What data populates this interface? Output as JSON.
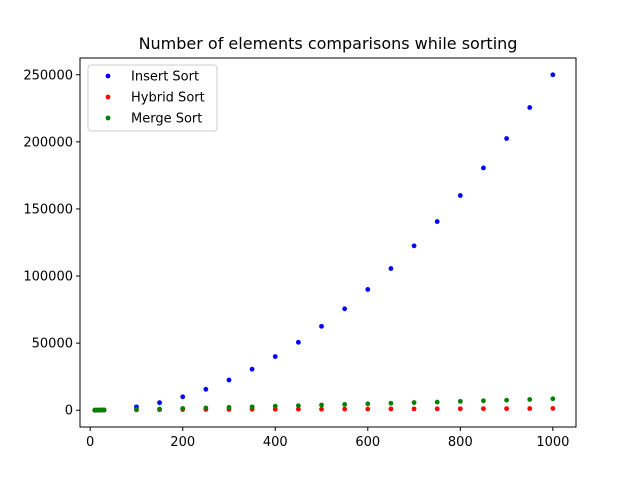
{
  "chart_data": {
    "type": "scatter",
    "title": "Number of elements comparisons while sorting",
    "xlabel": "",
    "ylabel": "",
    "xlim": [
      -22,
      1050
    ],
    "ylim": [
      -12500,
      262500
    ],
    "grid": false,
    "legend_position": "top-left",
    "xticks": [
      0,
      200,
      400,
      600,
      800,
      1000
    ],
    "yticks": [
      0,
      50000,
      100000,
      150000,
      200000,
      250000
    ],
    "xtick_labels": [
      "0",
      "200",
      "400",
      "600",
      "800",
      "1000"
    ],
    "ytick_labels": [
      "0",
      "50000",
      "100000",
      "150000",
      "200000",
      "250000"
    ],
    "series": [
      {
        "name": "Insert Sort",
        "color": "#0000ff",
        "x": [
          10,
          15,
          20,
          25,
          30,
          100,
          150,
          200,
          250,
          300,
          350,
          400,
          450,
          500,
          550,
          600,
          650,
          700,
          750,
          800,
          850,
          900,
          950,
          1000
        ],
        "y": [
          25,
          56,
          100,
          156,
          225,
          2500,
          5600,
          10000,
          15600,
          22500,
          30600,
          40000,
          50600,
          62500,
          75600,
          90000,
          105600,
          122500,
          140600,
          160000,
          180600,
          202500,
          225600,
          250000
        ]
      },
      {
        "name": "Hybrid Sort",
        "color": "#ff0000",
        "x": [
          10,
          15,
          20,
          25,
          30,
          100,
          150,
          200,
          250,
          300,
          350,
          400,
          450,
          500,
          550,
          600,
          650,
          700,
          750,
          800,
          850,
          900,
          950,
          1000
        ],
        "y": [
          20,
          45,
          80,
          120,
          170,
          300,
          400,
          500,
          550,
          600,
          650,
          700,
          750,
          800,
          850,
          900,
          950,
          1000,
          1050,
          1100,
          1150,
          1200,
          1250,
          1300
        ]
      },
      {
        "name": "Merge Sort",
        "color": "#008000",
        "x": [
          10,
          15,
          20,
          25,
          30,
          100,
          150,
          200,
          250,
          300,
          350,
          400,
          450,
          500,
          550,
          600,
          650,
          700,
          750,
          800,
          850,
          900,
          950,
          1000
        ],
        "y": [
          20,
          40,
          60,
          90,
          110,
          530,
          900,
          1300,
          1700,
          2100,
          2500,
          3000,
          3400,
          3900,
          4300,
          4800,
          5200,
          5700,
          6100,
          6600,
          7000,
          7500,
          8000,
          8500
        ]
      }
    ]
  }
}
